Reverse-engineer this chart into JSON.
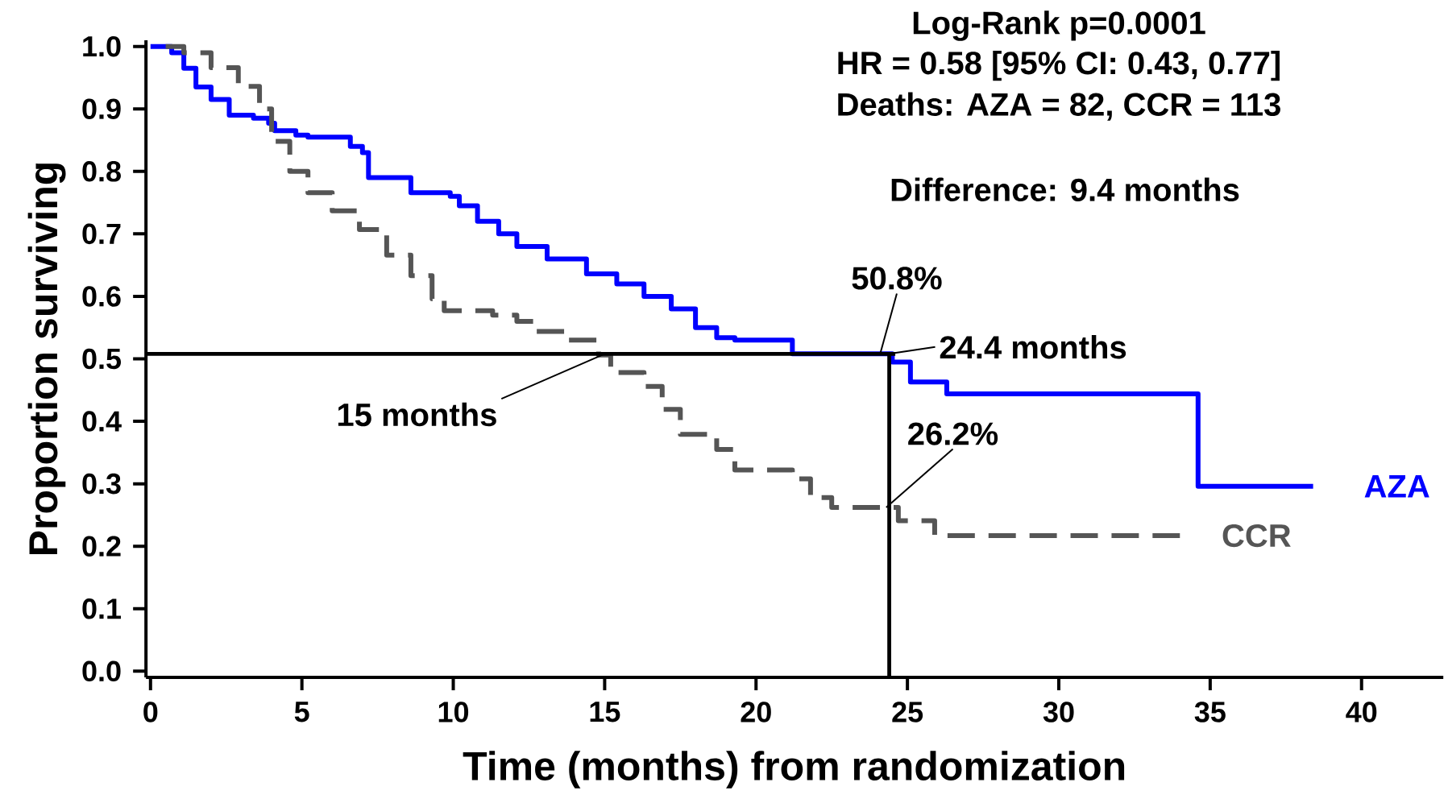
{
  "chart_data": {
    "type": "step",
    "xlabel": "Time (months) from randomization",
    "ylabel": "Proportion surviving",
    "xlim": [
      -0.15,
      42.7
    ],
    "ylim": [
      -0.01,
      1.01
    ],
    "xticks": [
      0,
      5,
      10,
      15,
      20,
      25,
      30,
      35,
      40
    ],
    "yticks": [
      {
        "value": 0,
        "label": "0.0"
      },
      {
        "value": 0.1,
        "label": "0.1"
      },
      {
        "value": 0.2,
        "label": "0.2"
      },
      {
        "value": 0.3,
        "label": "0.3"
      },
      {
        "value": 0.4,
        "label": "0.4"
      },
      {
        "value": 0.5,
        "label": "0.5"
      },
      {
        "value": 0.6,
        "label": "0.6"
      },
      {
        "value": 0.7,
        "label": "0.7"
      },
      {
        "value": 0.8,
        "label": "0.8"
      },
      {
        "value": 0.9,
        "label": "0.9"
      },
      {
        "value": 1,
        "label": "1.0"
      }
    ],
    "grid": false,
    "series": [
      {
        "name": "AZA",
        "color": "#0000ff",
        "line_style": "solid",
        "x": [
          0,
          0.7,
          1.1,
          1.5,
          2.0,
          2.6,
          3.4,
          3.9,
          4.1,
          4.8,
          5.2,
          6.6,
          7.0,
          7.2,
          8.6,
          9.9,
          10.2,
          10.8,
          11.5,
          12.1,
          13.1,
          14.4,
          15.4,
          16.3,
          17.2,
          18.0,
          18.7,
          19.3,
          21.2,
          24.5,
          25.1,
          26.3,
          34.6,
          38.4
        ],
        "values": [
          1.0,
          0.99,
          0.965,
          0.935,
          0.915,
          0.89,
          0.885,
          0.877,
          0.865,
          0.858,
          0.855,
          0.84,
          0.83,
          0.79,
          0.766,
          0.76,
          0.745,
          0.72,
          0.7,
          0.68,
          0.66,
          0.636,
          0.62,
          0.6,
          0.58,
          0.55,
          0.534,
          0.53,
          0.508,
          0.495,
          0.463,
          0.444,
          0.296,
          0.296
        ]
      },
      {
        "name": "CCR",
        "color": "#555555",
        "line_style": "dashed",
        "x": [
          0.5,
          1.1,
          2.0,
          2.9,
          3.6,
          4.0,
          4.6,
          5.2,
          6.0,
          6.9,
          7.8,
          8.6,
          9.3,
          9.7,
          11.3,
          12.1,
          12.7,
          13.7,
          14.8,
          15.2,
          16.3,
          16.9,
          17.5,
          18.7,
          19.3,
          21.2,
          21.8,
          22.5,
          24.7,
          25.9,
          34.0
        ],
        "values": [
          1.0,
          0.99,
          0.966,
          0.936,
          0.9,
          0.848,
          0.8,
          0.766,
          0.737,
          0.707,
          0.666,
          0.633,
          0.596,
          0.577,
          0.57,
          0.56,
          0.544,
          0.53,
          0.506,
          0.478,
          0.456,
          0.419,
          0.379,
          0.355,
          0.322,
          0.308,
          0.278,
          0.262,
          0.241,
          0.217,
          0.217
        ]
      }
    ],
    "ref_lines": [
      {
        "axis": "y",
        "value": 0.508,
        "color": "#000000"
      },
      {
        "axis": "x",
        "value": 24.4,
        "color": "#000000"
      }
    ],
    "annotations": [
      "Log-Rank  p=0.0001",
      "HR = 0.58 [95% CI: 0.43, 0.77]",
      "Deaths: AZA = 82, CCR = 113",
      "Difference: 9.4 months",
      {
        "text": "50.8%",
        "x": 24.1,
        "y": 0.508
      },
      {
        "text": "24.4 months",
        "x": 24.4,
        "y": 0.508
      },
      {
        "text": "26.2%",
        "x": 24.3,
        "y": 0.262
      },
      {
        "text": "15 months",
        "x": 15,
        "y": 0.508
      }
    ]
  }
}
